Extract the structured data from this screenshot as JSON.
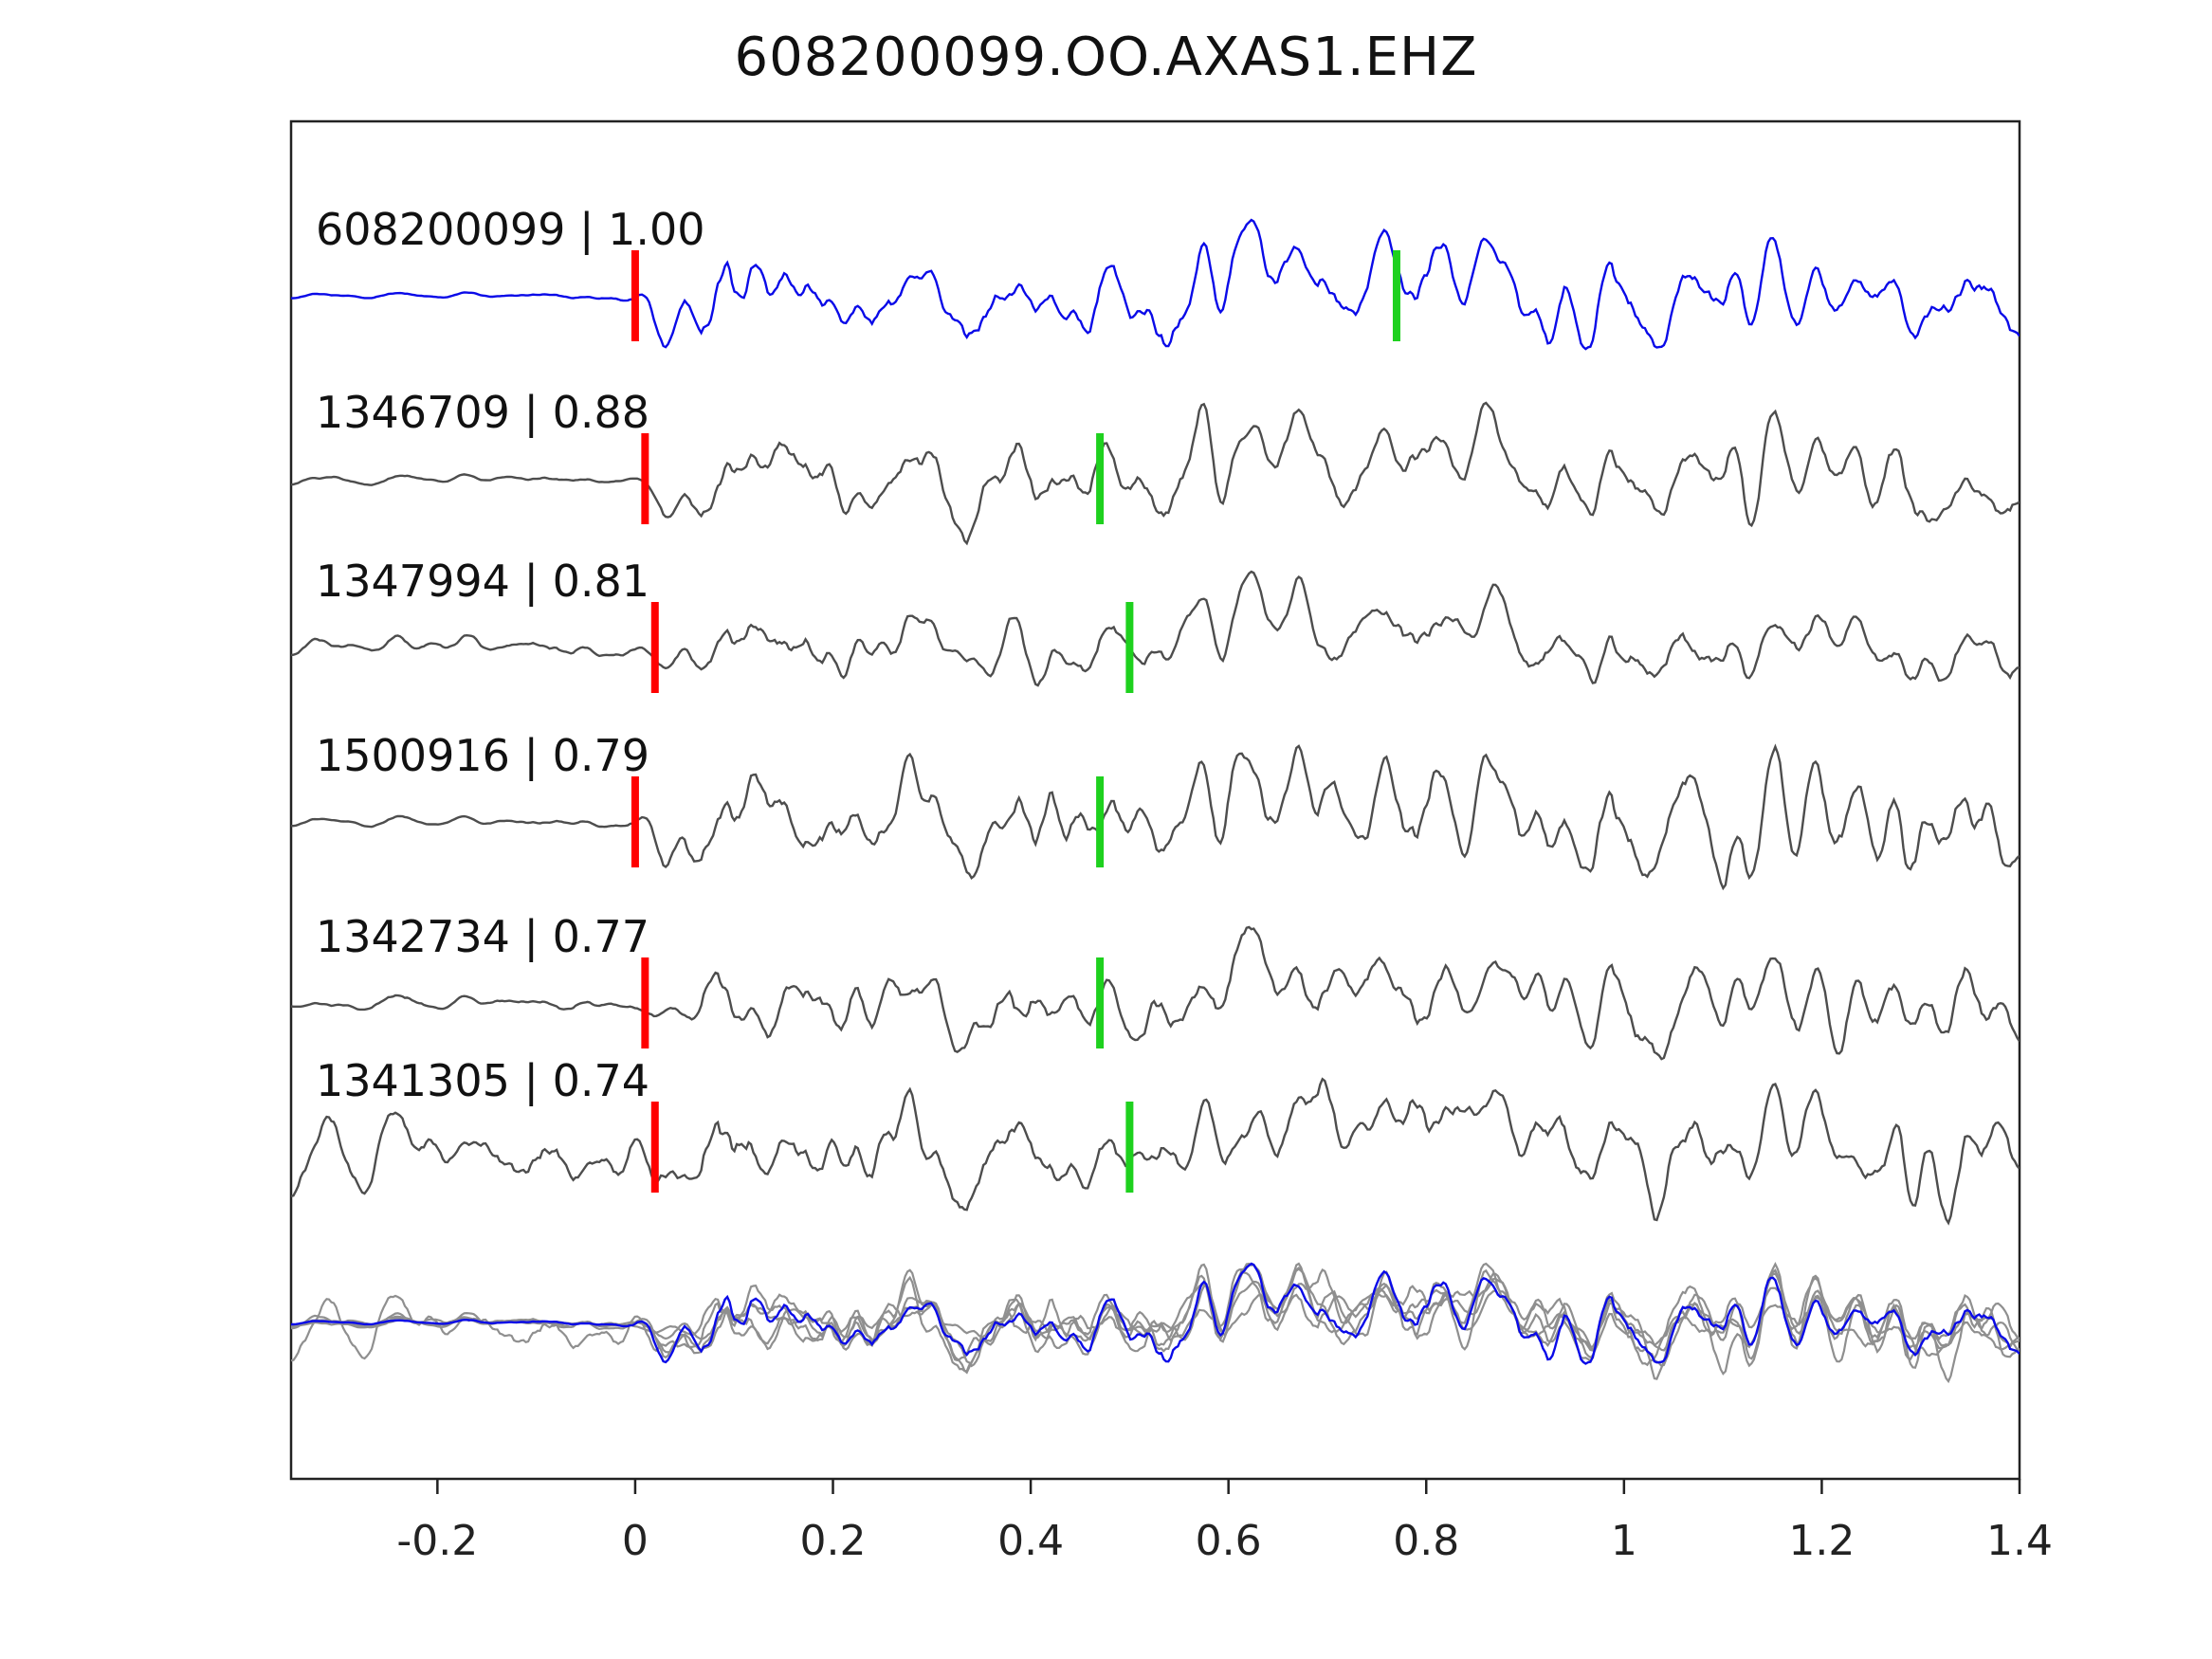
{
  "chart_data": {
    "type": "line",
    "title": "608200099.OO.AXAS1.EHZ",
    "subtitle": "",
    "xlabel": "",
    "ylabel": "",
    "grid": false,
    "legend": "none",
    "xlim": [
      -0.348,
      1.4
    ],
    "x_ticks": [
      -0.2,
      0,
      0.2,
      0.4,
      0.6,
      0.8,
      1,
      1.2,
      1.4
    ],
    "x_tick_labels": [
      "-0.2",
      "0",
      "0.2",
      "0.4",
      "0.6",
      "0.8",
      "1",
      "1.2",
      "1.4"
    ],
    "marker_colors": {
      "pick": "#ff0000",
      "associated": "#1ed11e"
    },
    "traces": [
      {
        "label": "608200099 | 1.00",
        "event_id": "608200099",
        "correlation": 1.0,
        "color": "#0a0ae8",
        "red_pick_x": 0.0,
        "green_pick_x": 0.77,
        "waveform": {
          "seed": 11,
          "pre_noise": 0.06,
          "mix_common": 0.75
        }
      },
      {
        "label": "1346709 | 0.88",
        "event_id": "1346709",
        "correlation": 0.88,
        "color": "#4d4d4d",
        "red_pick_x": 0.01,
        "green_pick_x": 0.47,
        "waveform": {
          "seed": 22,
          "pre_noise": 0.1,
          "mix_common": 0.68
        }
      },
      {
        "label": "1347994 | 0.81",
        "event_id": "1347994",
        "correlation": 0.81,
        "color": "#4d4d4d",
        "red_pick_x": 0.02,
        "green_pick_x": 0.5,
        "waveform": {
          "seed": 33,
          "pre_noise": 0.22,
          "mix_common": 0.62
        }
      },
      {
        "label": "1500916 | 0.79",
        "event_id": "1500916",
        "correlation": 0.79,
        "color": "#4d4d4d",
        "red_pick_x": 0.0,
        "green_pick_x": 0.47,
        "waveform": {
          "seed": 44,
          "pre_noise": 0.08,
          "mix_common": 0.6
        }
      },
      {
        "label": "1342734 | 0.77",
        "event_id": "1342734",
        "correlation": 0.77,
        "color": "#4d4d4d",
        "red_pick_x": 0.01,
        "green_pick_x": 0.47,
        "waveform": {
          "seed": 55,
          "pre_noise": 0.14,
          "mix_common": 0.58
        }
      },
      {
        "label": "1341305 | 0.74",
        "event_id": "1341305",
        "correlation": 0.74,
        "color": "#4d4d4d",
        "red_pick_x": 0.02,
        "green_pick_x": 0.5,
        "waveform": {
          "seed": 66,
          "pre_noise": 0.7,
          "mix_common": 0.55
        }
      }
    ],
    "stack": {
      "description": "aligned overlay of all traces",
      "overlay_color": "#8f8f8f",
      "main_color": "#0a0ae8",
      "common_seed": 777
    }
  }
}
